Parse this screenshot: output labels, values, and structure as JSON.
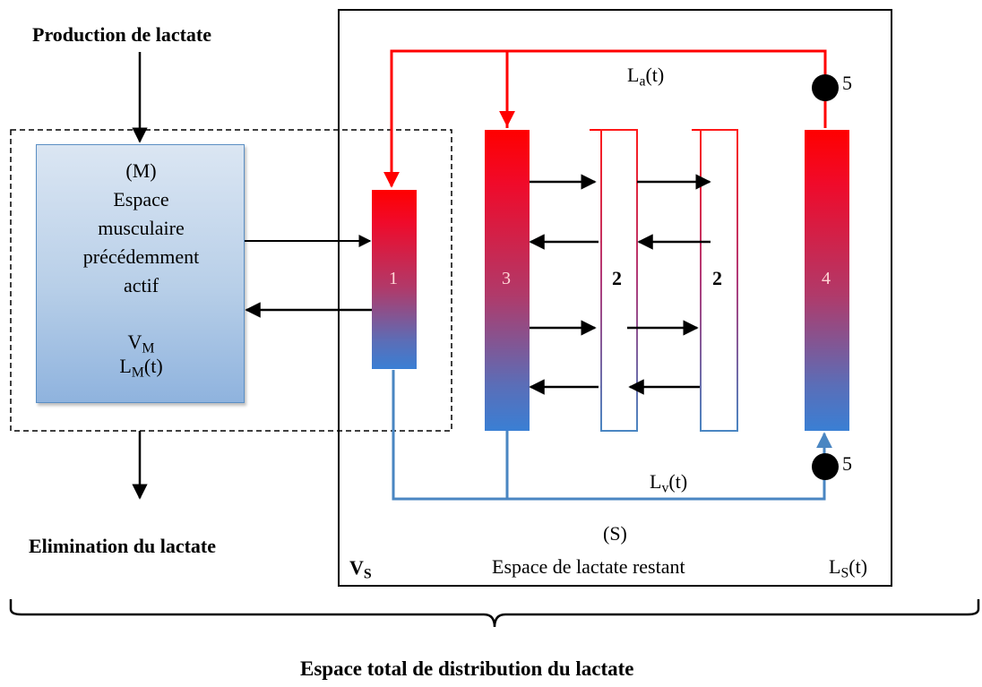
{
  "labels": {
    "production": "Production de lactate",
    "elimination": "Elimination du lactate",
    "total_space": "Espace total de distribution du lactate",
    "s_code": "(S)",
    "s_name": "Espace de lactate restant"
  },
  "muscle_box": {
    "code": "(M)",
    "line1": "Espace",
    "line2": "musculaire",
    "line3": "précédemment",
    "line4": "actif",
    "volume_main": "V",
    "volume_sub": "M",
    "conc_main": "L",
    "conc_sub": "M",
    "conc_tail": "(t)"
  },
  "s_space": {
    "volume_main": "V",
    "volume_sub": "S",
    "conc_main": "L",
    "conc_sub": "S",
    "conc_tail": "(t)"
  },
  "flows": {
    "arterial_main": "L",
    "arterial_sub": "a",
    "arterial_tail": "(t)",
    "venous_main": "L",
    "venous_sub": "v",
    "venous_tail": "(t)"
  },
  "compartments": {
    "c1": "1",
    "c3": "3",
    "c2a": "2",
    "c2b": "2",
    "c4": "4"
  },
  "pumps": {
    "top": "5",
    "bottom": "5"
  },
  "colors": {
    "arterial": "#ff0000",
    "venous": "#4a86c2",
    "tube_top": "#ff0000",
    "tube_bottom": "#3a7fd4",
    "muscle_fill": "#b8cfe8"
  }
}
